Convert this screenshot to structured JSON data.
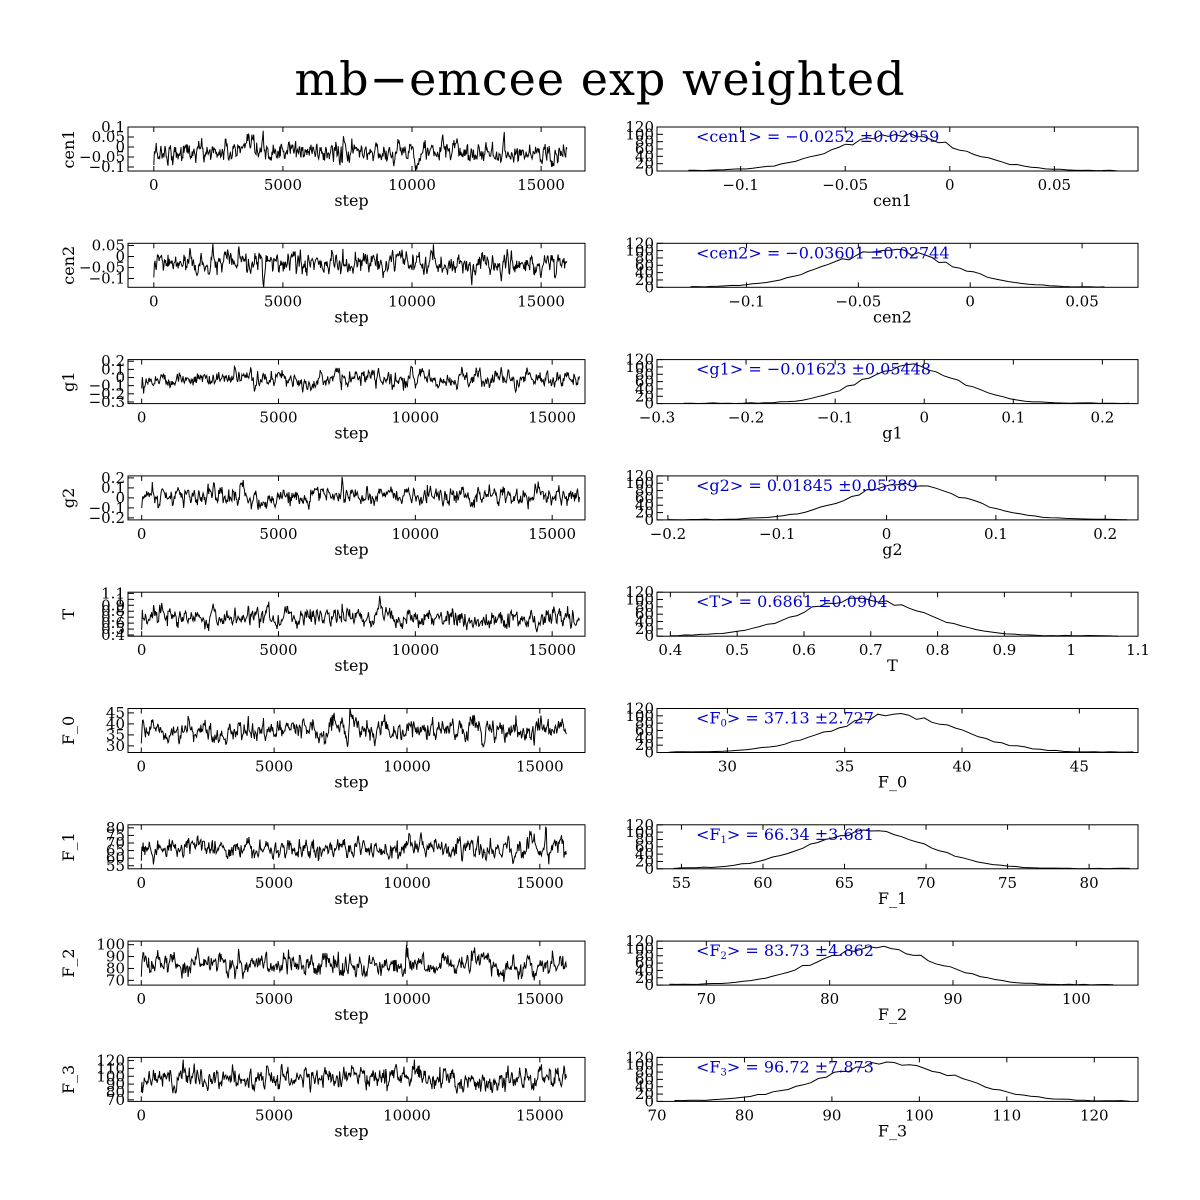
{
  "title": "mb−emcee exp weighted",
  "chart_data": {
    "type": "line",
    "layout": "9 rows x 2 columns: MCMC trace (left) and posterior histogram (right)",
    "title": "mb−emcee exp weighted",
    "colors": {
      "axes": "#000000",
      "trace": "#000000",
      "annotation": "#0000cc"
    },
    "traces": [
      {
        "param": "cen1",
        "ylabel": "cen1",
        "xlabel": "step",
        "xlim": [
          -1000,
          16700
        ],
        "ylim": [
          -0.12,
          0.1
        ],
        "xticks": [
          0,
          5000,
          10000,
          15000
        ],
        "yticks": [
          "0.1",
          "0.05",
          "0",
          "−0.05",
          "−0.1"
        ],
        "ytick_values": [
          0.1,
          0.05,
          0,
          -0.05,
          -0.1
        ],
        "center": -0.025,
        "sigma": 0.03,
        "n_steps": 16000
      },
      {
        "param": "cen2",
        "ylabel": "cen2",
        "xlabel": "step",
        "xlim": [
          -1000,
          16700
        ],
        "ylim": [
          -0.14,
          0.06
        ],
        "xticks": [
          0,
          5000,
          10000,
          15000
        ],
        "yticks": [
          "0.05",
          "0",
          "−0.05",
          "−0.1"
        ],
        "ytick_values": [
          0.05,
          0,
          -0.05,
          -0.1
        ],
        "center": -0.036,
        "sigma": 0.027,
        "n_steps": 16000
      },
      {
        "param": "g1",
        "ylabel": "g1",
        "xlabel": "step",
        "xlim": [
          -500,
          16200
        ],
        "ylim": [
          -0.32,
          0.22
        ],
        "xticks": [
          0,
          5000,
          10000,
          15000
        ],
        "yticks": [
          "0.2",
          "0.1",
          "0",
          "−0.1",
          "−0.2",
          "−0.3"
        ],
        "ytick_values": [
          0.2,
          0.1,
          0,
          -0.1,
          -0.2,
          -0.3
        ],
        "center": -0.016,
        "sigma": 0.054,
        "n_steps": 16000
      },
      {
        "param": "g2",
        "ylabel": "g2",
        "xlabel": "step",
        "xlim": [
          -500,
          16200
        ],
        "ylim": [
          -0.22,
          0.22
        ],
        "xticks": [
          0,
          5000,
          10000,
          15000
        ],
        "yticks": [
          "0.2",
          "0.1",
          "0",
          "−0.1",
          "−0.2"
        ],
        "ytick_values": [
          0.2,
          0.1,
          0,
          -0.1,
          -0.2
        ],
        "center": 0.018,
        "sigma": 0.054,
        "n_steps": 16000
      },
      {
        "param": "T",
        "ylabel": "T",
        "xlabel": "step",
        "xlim": [
          -500,
          16200
        ],
        "ylim": [
          0.38,
          1.12
        ],
        "xticks": [
          0,
          5000,
          10000,
          15000
        ],
        "yticks": [
          "1.1",
          "1",
          "0.9",
          "0.8",
          "0.7",
          "0.6",
          "0.5",
          "0.4"
        ],
        "ytick_values": [
          1.1,
          1.0,
          0.9,
          0.8,
          0.7,
          0.6,
          0.5,
          0.4
        ],
        "center": 0.686,
        "sigma": 0.09,
        "n_steps": 16000
      },
      {
        "param": "F_0",
        "ylabel": "F_0",
        "xlabel": "step",
        "xlim": [
          -500,
          16700
        ],
        "ylim": [
          27,
          47
        ],
        "xticks": [
          0,
          5000,
          10000,
          15000
        ],
        "yticks": [
          "45",
          "40",
          "35",
          "30"
        ],
        "ytick_values": [
          45,
          40,
          35,
          30
        ],
        "center": 37.13,
        "sigma": 2.727,
        "n_steps": 16000
      },
      {
        "param": "F_1",
        "ylabel": "F_1",
        "xlabel": "step",
        "xlim": [
          -500,
          16700
        ],
        "ylim": [
          53,
          82
        ],
        "xticks": [
          0,
          5000,
          10000,
          15000
        ],
        "yticks": [
          "80",
          "75",
          "70",
          "65",
          "60",
          "55"
        ],
        "ytick_values": [
          80,
          75,
          70,
          65,
          60,
          55
        ],
        "center": 66.34,
        "sigma": 3.681,
        "n_steps": 16000
      },
      {
        "param": "F_2",
        "ylabel": "F_2",
        "xlabel": "step",
        "xlim": [
          -500,
          16700
        ],
        "ylim": [
          66,
          103
        ],
        "xticks": [
          0,
          5000,
          10000,
          15000
        ],
        "yticks": [
          "100",
          "90",
          "80",
          "70"
        ],
        "ytick_values": [
          100,
          90,
          80,
          70
        ],
        "center": 83.73,
        "sigma": 4.862,
        "n_steps": 16000
      },
      {
        "param": "F_3",
        "ylabel": "F_3",
        "xlabel": "step",
        "xlim": [
          -500,
          16700
        ],
        "ylim": [
          68,
          124
        ],
        "xticks": [
          0,
          5000,
          10000,
          15000
        ],
        "yticks": [
          "120",
          "110",
          "100",
          "90",
          "80",
          "70"
        ],
        "ytick_values": [
          120,
          110,
          100,
          90,
          80,
          70
        ],
        "center": 96.72,
        "sigma": 7.873,
        "n_steps": 16000
      }
    ],
    "histograms": [
      {
        "param": "cen1",
        "xlabel": "cen1",
        "annotation": "<cen1> = −0.0252 ±0.02959",
        "annotation_parts": [
          [
            "<cen1> = −0.0252 ±0.02959",
            "n"
          ]
        ],
        "xlim": [
          -0.14,
          0.09
        ],
        "ylim": [
          0,
          120
        ],
        "xticks": [
          "−0.1",
          "−0.05",
          "0",
          "0.05"
        ],
        "xtick_values": [
          -0.1,
          -0.05,
          0,
          0.05
        ],
        "yticks": [
          "120",
          "100",
          "80",
          "60",
          "40",
          "20",
          "0"
        ],
        "ytick_values": [
          120,
          100,
          80,
          60,
          40,
          20,
          0
        ],
        "mean": -0.0252,
        "sigma": 0.02959,
        "data_range": [
          -0.125,
          0.08
        ],
        "peak": 98
      },
      {
        "param": "cen2",
        "xlabel": "cen2",
        "annotation": "<cen2> = −0.03601 ±0.02744",
        "annotation_parts": [
          [
            "<cen2> = −0.03601 ±0.02744",
            "n"
          ]
        ],
        "xlim": [
          -0.14,
          0.075
        ],
        "ylim": [
          0,
          120
        ],
        "xticks": [
          "−0.1",
          "−0.05",
          "0",
          "0.05"
        ],
        "xtick_values": [
          -0.1,
          -0.05,
          0,
          0.05
        ],
        "yticks": [
          "120",
          "100",
          "80",
          "60",
          "40",
          "20",
          "0"
        ],
        "ytick_values": [
          120,
          100,
          80,
          60,
          40,
          20,
          0
        ],
        "mean": -0.03601,
        "sigma": 0.02744,
        "data_range": [
          -0.125,
          0.06
        ],
        "peak": 98
      },
      {
        "param": "g1",
        "xlabel": "g1",
        "annotation": "<g1> = −0.01623 ±0.05448",
        "annotation_parts": [
          [
            "<g1> = −0.01623 ±0.05448",
            "n"
          ]
        ],
        "xlim": [
          -0.3,
          0.24
        ],
        "ylim": [
          0,
          120
        ],
        "xticks": [
          "−0.3",
          "−0.2",
          "−0.1",
          "0",
          "0.1",
          "0.2"
        ],
        "xtick_values": [
          -0.3,
          -0.2,
          -0.1,
          0,
          0.1,
          0.2
        ],
        "yticks": [
          "120",
          "100",
          "80",
          "60",
          "40",
          "20",
          "0"
        ],
        "ytick_values": [
          120,
          100,
          80,
          60,
          40,
          20,
          0
        ],
        "mean": -0.01623,
        "sigma": 0.05448,
        "data_range": [
          -0.27,
          0.23
        ],
        "peak": 102
      },
      {
        "param": "g2",
        "xlabel": "g2",
        "annotation": "<g2> = 0.01845 ±0.05389",
        "annotation_parts": [
          [
            "<g2> = 0.01845 ±0.05389",
            "n"
          ]
        ],
        "xlim": [
          -0.21,
          0.23
        ],
        "ylim": [
          0,
          120
        ],
        "xticks": [
          "−0.2",
          "−0.1",
          "0",
          "0.1",
          "0.2"
        ],
        "xtick_values": [
          -0.2,
          -0.1,
          0,
          0.1,
          0.2
        ],
        "yticks": [
          "120",
          "100",
          "80",
          "60",
          "40",
          "20",
          "0"
        ],
        "ytick_values": [
          120,
          100,
          80,
          60,
          40,
          20,
          0
        ],
        "mean": 0.01845,
        "sigma": 0.05389,
        "data_range": [
          -0.2,
          0.22
        ],
        "peak": 96
      },
      {
        "param": "T",
        "xlabel": "T",
        "annotation": "<T> = 0.6861 ±0.0904",
        "annotation_parts": [
          [
            "<T> = 0.6861 ±0.0904",
            "n"
          ]
        ],
        "xlim": [
          0.38,
          1.1
        ],
        "ylim": [
          0,
          120
        ],
        "xticks": [
          "0.4",
          "0.5",
          "0.6",
          "0.7",
          "0.8",
          "0.9",
          "1",
          "1.1"
        ],
        "xtick_values": [
          0.4,
          0.5,
          0.6,
          0.7,
          0.8,
          0.9,
          1.0,
          1.1
        ],
        "yticks": [
          "120",
          "100",
          "80",
          "60",
          "40",
          "20",
          "0"
        ],
        "ytick_values": [
          120,
          100,
          80,
          60,
          40,
          20,
          0
        ],
        "mean": 0.6861,
        "sigma": 0.0904,
        "data_range": [
          0.4,
          1.07
        ],
        "peak": 102
      },
      {
        "param": "F_0",
        "xlabel": "F_0",
        "annotation": "<F₀> = 37.13 ±2.727",
        "annotation_parts": [
          [
            "<F",
            "n"
          ],
          [
            "0",
            "sub"
          ],
          [
            "> = 37.13 ±2.727",
            "n"
          ]
        ],
        "xlim": [
          27,
          47.5
        ],
        "ylim": [
          0,
          120
        ],
        "xticks": [
          "30",
          "35",
          "40",
          "45"
        ],
        "xtick_values": [
          30,
          35,
          40,
          45
        ],
        "yticks": [
          "120",
          "100",
          "80",
          "60",
          "40",
          "20",
          "0"
        ],
        "ytick_values": [
          120,
          100,
          80,
          60,
          40,
          20,
          0
        ],
        "mean": 37.13,
        "sigma": 2.727,
        "data_range": [
          27.5,
          47.3
        ],
        "peak": 100
      },
      {
        "param": "F_1",
        "xlabel": "F_1",
        "annotation": "<F₁> = 66.34 ±3.681",
        "annotation_parts": [
          [
            "<F",
            "n"
          ],
          [
            "1",
            "sub"
          ],
          [
            "> = 66.34 ±3.681",
            "n"
          ]
        ],
        "xlim": [
          53.5,
          83
        ],
        "ylim": [
          0,
          120
        ],
        "xticks": [
          "55",
          "60",
          "65",
          "70",
          "75",
          "80"
        ],
        "xtick_values": [
          55,
          60,
          65,
          70,
          75,
          80
        ],
        "yticks": [
          "120",
          "100",
          "80",
          "60",
          "40",
          "20",
          "0"
        ],
        "ytick_values": [
          120,
          100,
          80,
          60,
          40,
          20,
          0
        ],
        "mean": 66.34,
        "sigma": 3.681,
        "data_range": [
          54.5,
          82.5
        ],
        "peak": 100
      },
      {
        "param": "F_2",
        "xlabel": "F_2",
        "annotation": "<F₂> = 83.73 ±4.862",
        "annotation_parts": [
          [
            "<F",
            "n"
          ],
          [
            "2",
            "sub"
          ],
          [
            "> = 83.73 ±4.862",
            "n"
          ]
        ],
        "xlim": [
          66,
          105
        ],
        "ylim": [
          0,
          120
        ],
        "xticks": [
          "70",
          "80",
          "90",
          "100"
        ],
        "xtick_values": [
          70,
          80,
          90,
          100
        ],
        "yticks": [
          "120",
          "100",
          "80",
          "60",
          "40",
          "20",
          "0"
        ],
        "ytick_values": [
          120,
          100,
          80,
          60,
          40,
          20,
          0
        ],
        "mean": 83.73,
        "sigma": 4.862,
        "data_range": [
          67,
          103
        ],
        "peak": 102
      },
      {
        "param": "F_3",
        "xlabel": "F_3",
        "annotation": "<F₃> = 96.72 ±7.873",
        "annotation_parts": [
          [
            "<F",
            "n"
          ],
          [
            "3",
            "sub"
          ],
          [
            "> = 96.72 ±7.873",
            "n"
          ]
        ],
        "xlim": [
          70,
          125
        ],
        "ylim": [
          0,
          120
        ],
        "xticks": [
          "70",
          "80",
          "90",
          "100",
          "110",
          "120"
        ],
        "xtick_values": [
          70,
          80,
          90,
          100,
          110,
          120
        ],
        "yticks": [
          "120",
          "100",
          "80",
          "60",
          "40",
          "20",
          "0"
        ],
        "ytick_values": [
          120,
          100,
          80,
          60,
          40,
          20,
          0
        ],
        "mean": 96.72,
        "sigma": 7.873,
        "data_range": [
          72,
          124
        ],
        "peak": 102
      }
    ]
  }
}
